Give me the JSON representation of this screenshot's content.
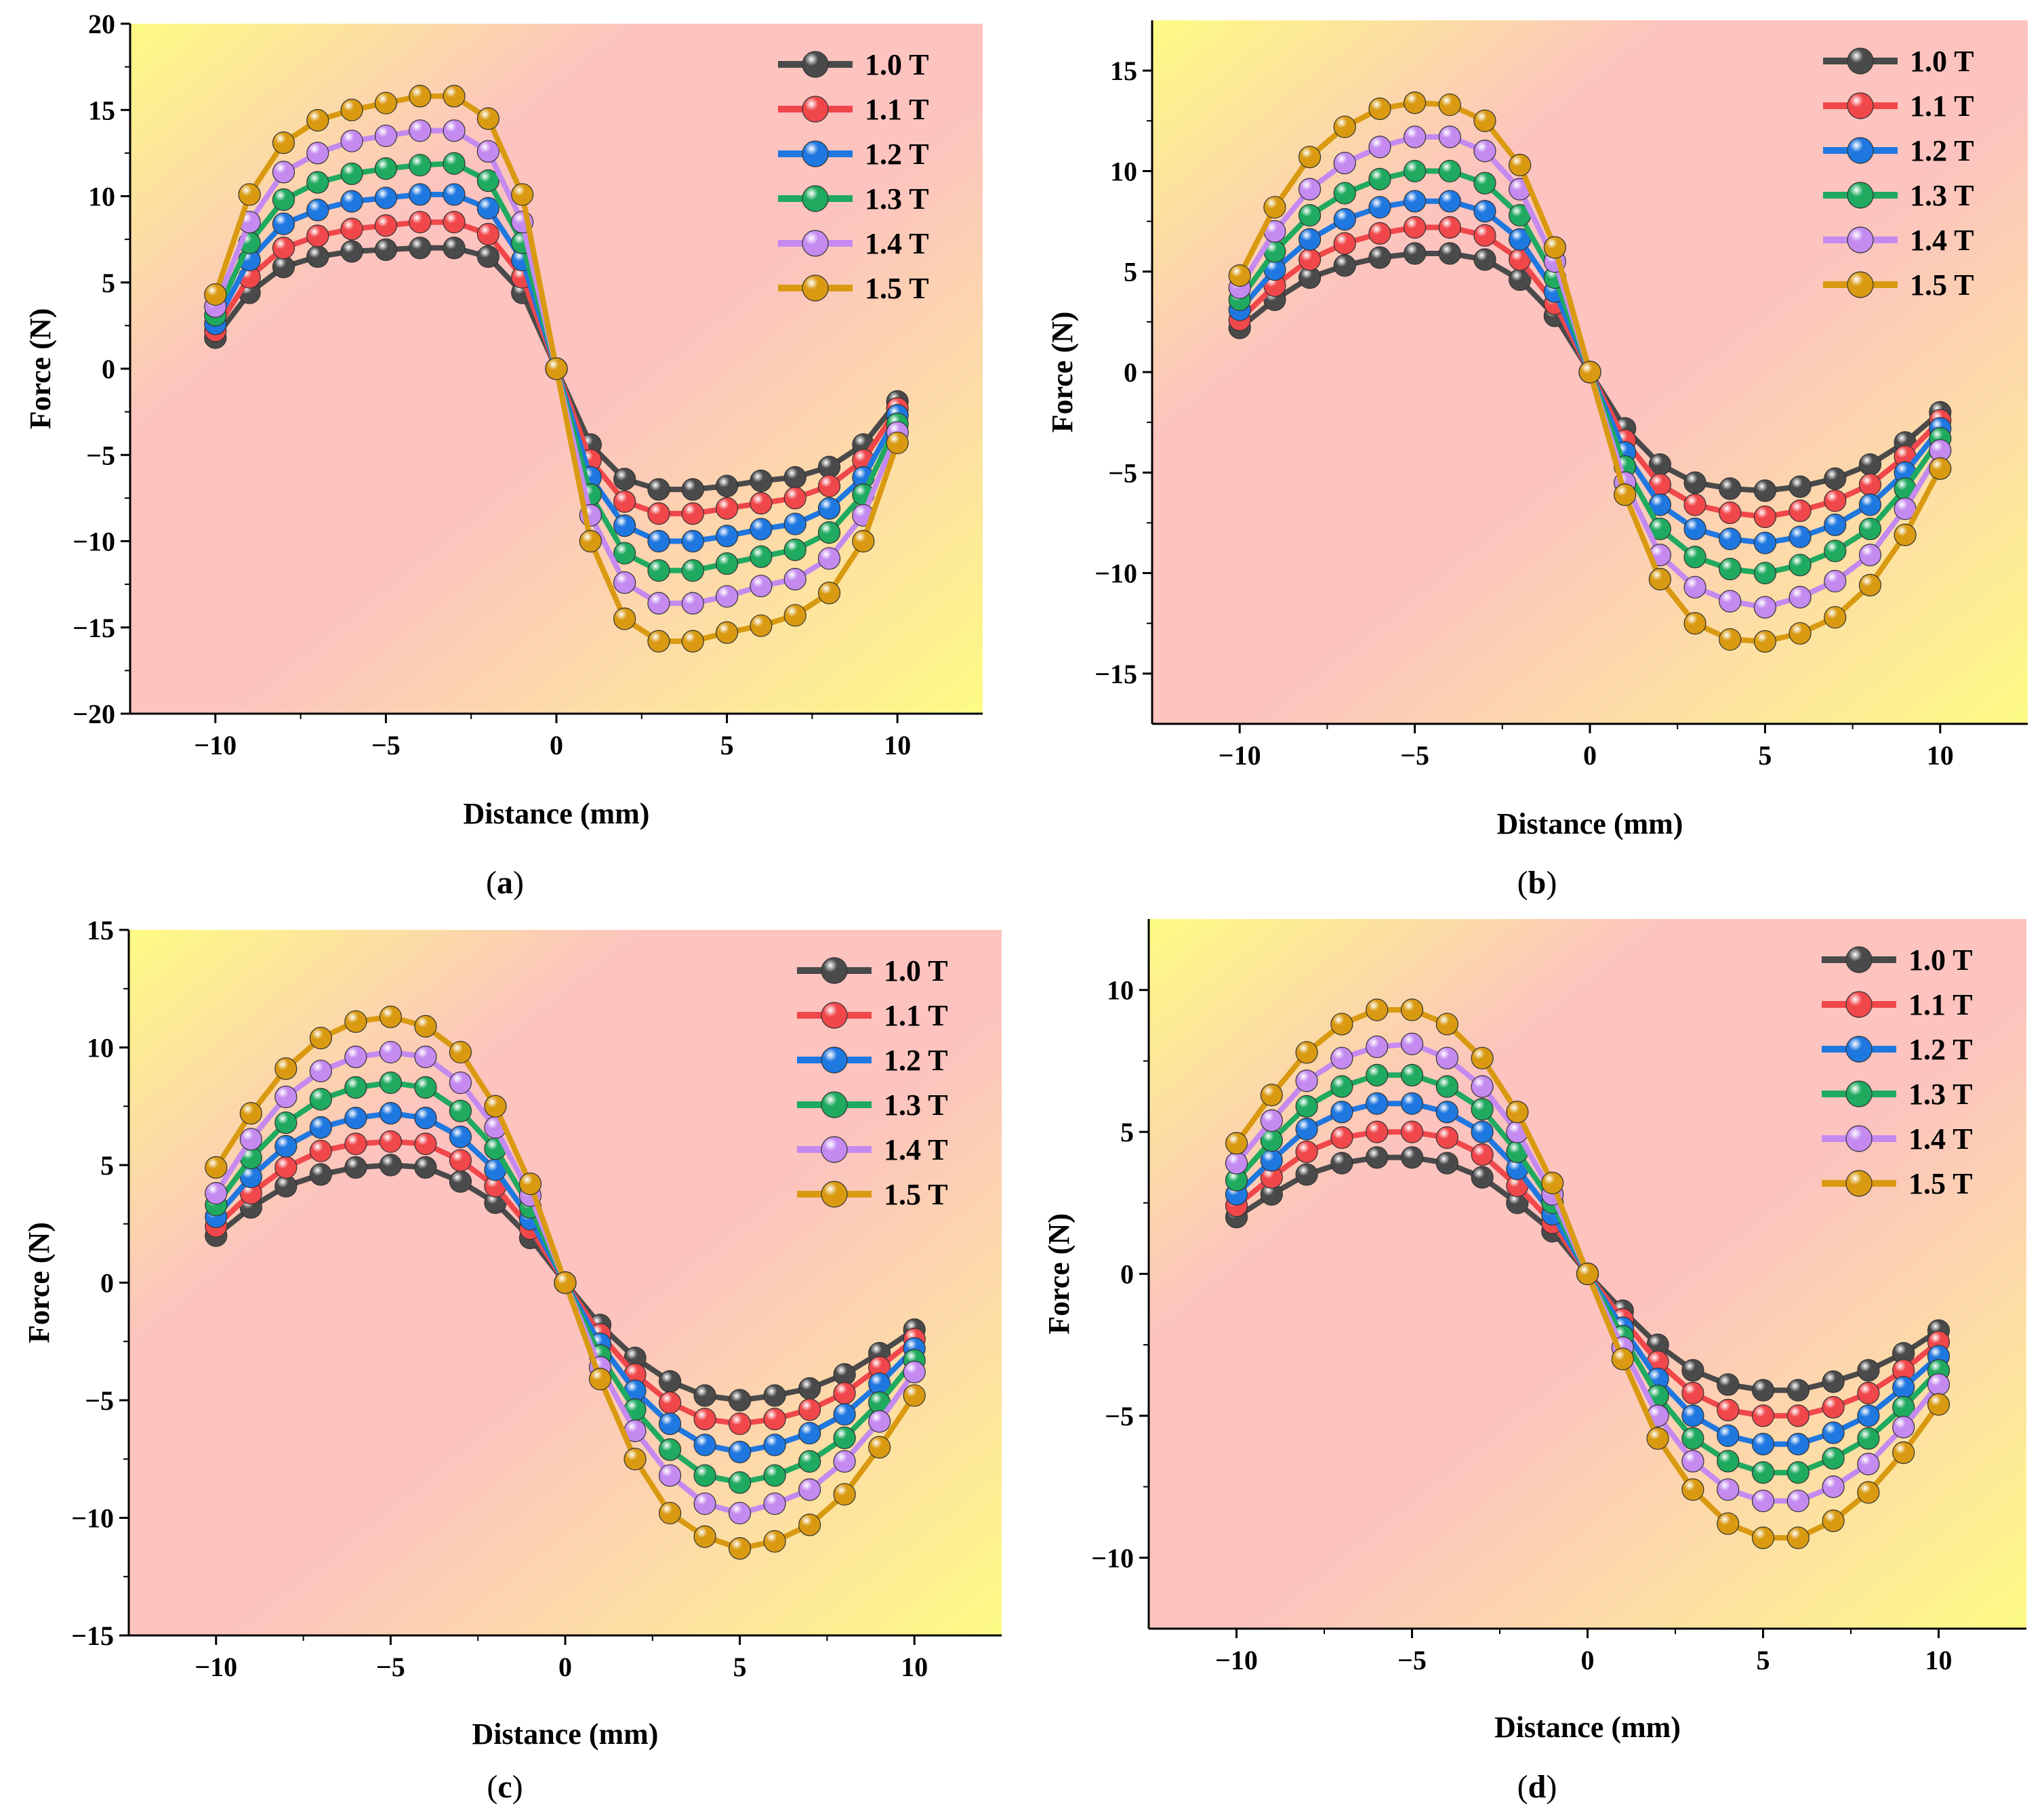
{
  "figure": {
    "colors": {
      "grad_pink": "#fcc3bf",
      "grad_yellow": "#fdfb84",
      "axis": "#000000",
      "marker_edge": "#333333"
    }
  },
  "chart_data": [
    {
      "panel_label": "a",
      "type": "line",
      "xlabel": "Distance (mm)",
      "ylabel": "Force (N)",
      "xlim": [
        -12.5,
        12.5
      ],
      "ylim": [
        -20,
        20
      ],
      "xticks": [
        -10,
        -5,
        0,
        5,
        10
      ],
      "xtick_labels": [
        "−10",
        "−5",
        "0",
        "5",
        "10"
      ],
      "yticks": [
        -20,
        -15,
        -10,
        -5,
        0,
        5,
        10,
        15,
        20
      ],
      "ytick_labels": [
        "−20",
        "−15",
        "−10",
        "−5",
        "0",
        "5",
        "10",
        "15",
        "20"
      ],
      "legend_position": "top-right",
      "x": [
        -10,
        -9,
        -8,
        -7,
        -6,
        -5,
        -4,
        -3,
        -2,
        -1,
        0,
        1,
        2,
        3,
        4,
        5,
        6,
        7,
        8,
        9,
        10
      ],
      "series": [
        {
          "name": "1.0 T",
          "color": "#4a4a4a",
          "values": [
            1.8,
            4.4,
            5.9,
            6.5,
            6.8,
            6.9,
            7.0,
            7.0,
            6.5,
            4.4,
            0,
            -4.4,
            -6.4,
            -7.0,
            -7.0,
            -6.8,
            -6.5,
            -6.3,
            -5.7,
            -4.4,
            -1.9
          ]
        },
        {
          "name": "1.1 T",
          "color": "#f0474b",
          "values": [
            2.2,
            5.3,
            7.0,
            7.7,
            8.1,
            8.3,
            8.5,
            8.5,
            7.8,
            5.3,
            0,
            -5.3,
            -7.7,
            -8.4,
            -8.4,
            -8.1,
            -7.8,
            -7.5,
            -6.8,
            -5.3,
            -2.3
          ]
        },
        {
          "name": "1.2 T",
          "color": "#1f77e0",
          "values": [
            2.6,
            6.3,
            8.4,
            9.2,
            9.7,
            9.9,
            10.1,
            10.1,
            9.3,
            6.3,
            0,
            -6.3,
            -9.1,
            -10.0,
            -10.0,
            -9.7,
            -9.3,
            -9.0,
            -8.1,
            -6.3,
            -2.7
          ]
        },
        {
          "name": "1.3 T",
          "color": "#1faa5f",
          "values": [
            3.1,
            7.3,
            9.8,
            10.8,
            11.3,
            11.6,
            11.8,
            11.9,
            10.9,
            7.3,
            0,
            -7.3,
            -10.7,
            -11.7,
            -11.7,
            -11.3,
            -10.9,
            -10.5,
            -9.5,
            -7.3,
            -3.2
          ]
        },
        {
          "name": "1.4 T",
          "color": "#c48af0",
          "values": [
            3.6,
            8.5,
            11.4,
            12.5,
            13.2,
            13.5,
            13.8,
            13.8,
            12.6,
            8.5,
            0,
            -8.5,
            -12.4,
            -13.6,
            -13.6,
            -13.2,
            -12.6,
            -12.2,
            -11.0,
            -8.5,
            -3.7
          ]
        },
        {
          "name": "1.5 T",
          "color": "#d99a11",
          "values": [
            4.3,
            10.1,
            13.1,
            14.4,
            15.0,
            15.4,
            15.8,
            15.8,
            14.5,
            10.1,
            0,
            -10.0,
            -14.5,
            -15.8,
            -15.8,
            -15.3,
            -14.9,
            -14.3,
            -13.0,
            -10.0,
            -4.3
          ]
        }
      ]
    },
    {
      "panel_label": "b",
      "type": "line",
      "xlabel": "Distance (mm)",
      "ylabel": "Force (N)",
      "xlim": [
        -12.5,
        12.5
      ],
      "ylim": [
        -17.5,
        17.5
      ],
      "xticks": [
        -10,
        -5,
        0,
        5,
        10
      ],
      "xtick_labels": [
        "−10",
        "−5",
        "0",
        "5",
        "10"
      ],
      "yticks": [
        -15,
        -10,
        -5,
        0,
        5,
        10,
        15
      ],
      "ytick_labels": [
        "−15",
        "−10",
        "−5",
        "0",
        "5",
        "10",
        "15"
      ],
      "legend_position": "top-right",
      "x": [
        -10,
        -9,
        -8,
        -7,
        -6,
        -5,
        -4,
        -3,
        -2,
        -1,
        0,
        1,
        2,
        3,
        4,
        5,
        6,
        7,
        8,
        9,
        10
      ],
      "series": [
        {
          "name": "1.0 T",
          "color": "#4a4a4a",
          "values": [
            2.2,
            3.6,
            4.7,
            5.3,
            5.7,
            5.9,
            5.9,
            5.6,
            4.6,
            2.8,
            0,
            -2.8,
            -4.6,
            -5.5,
            -5.8,
            -5.9,
            -5.7,
            -5.3,
            -4.6,
            -3.5,
            -2.0
          ]
        },
        {
          "name": "1.1 T",
          "color": "#f0474b",
          "values": [
            2.6,
            4.3,
            5.6,
            6.4,
            6.9,
            7.2,
            7.2,
            6.8,
            5.6,
            3.4,
            0,
            -3.4,
            -5.6,
            -6.6,
            -7.0,
            -7.2,
            -6.9,
            -6.4,
            -5.6,
            -4.2,
            -2.4
          ]
        },
        {
          "name": "1.2 T",
          "color": "#1f77e0",
          "values": [
            3.1,
            5.1,
            6.6,
            7.6,
            8.2,
            8.5,
            8.5,
            8.0,
            6.6,
            4.0,
            0,
            -4.0,
            -6.6,
            -7.8,
            -8.3,
            -8.5,
            -8.2,
            -7.6,
            -6.6,
            -5.0,
            -2.8
          ]
        },
        {
          "name": "1.3 T",
          "color": "#1faa5f",
          "values": [
            3.6,
            6.0,
            7.8,
            8.9,
            9.6,
            10.0,
            10.0,
            9.4,
            7.8,
            4.7,
            0,
            -4.7,
            -7.8,
            -9.2,
            -9.8,
            -10.0,
            -9.6,
            -8.9,
            -7.8,
            -5.8,
            -3.3
          ]
        },
        {
          "name": "1.4 T",
          "color": "#c48af0",
          "values": [
            4.2,
            7.0,
            9.1,
            10.4,
            11.2,
            11.7,
            11.7,
            11.0,
            9.1,
            5.5,
            0,
            -5.5,
            -9.1,
            -10.7,
            -11.4,
            -11.7,
            -11.2,
            -10.4,
            -9.1,
            -6.8,
            -3.9
          ]
        },
        {
          "name": "1.5 T",
          "color": "#d99a11",
          "values": [
            4.8,
            8.2,
            10.7,
            12.2,
            13.1,
            13.4,
            13.3,
            12.5,
            10.3,
            6.2,
            0,
            -6.1,
            -10.3,
            -12.5,
            -13.3,
            -13.4,
            -13.0,
            -12.2,
            -10.6,
            -8.1,
            -4.8
          ]
        }
      ]
    },
    {
      "panel_label": "c",
      "type": "line",
      "xlabel": "Distance (mm)",
      "ylabel": "Force (N)",
      "xlim": [
        -12.5,
        12.5
      ],
      "ylim": [
        -15,
        15
      ],
      "xticks": [
        -10,
        -5,
        0,
        5,
        10
      ],
      "xtick_labels": [
        "−10",
        "−5",
        "0",
        "5",
        "10"
      ],
      "yticks": [
        -15,
        -10,
        -5,
        0,
        5,
        10,
        15
      ],
      "ytick_labels": [
        "−15",
        "−10",
        "−5",
        "0",
        "5",
        "10",
        "15"
      ],
      "legend_position": "top-right",
      "x": [
        -10,
        -9,
        -8,
        -7,
        -6,
        -5,
        -4,
        -3,
        -2,
        -1,
        0,
        1,
        2,
        3,
        4,
        5,
        6,
        7,
        8,
        9,
        10
      ],
      "series": [
        {
          "name": "1.0 T",
          "color": "#4a4a4a",
          "values": [
            2.0,
            3.2,
            4.1,
            4.6,
            4.9,
            5.0,
            4.9,
            4.3,
            3.4,
            1.9,
            0,
            -1.8,
            -3.2,
            -4.2,
            -4.8,
            -5.0,
            -4.8,
            -4.5,
            -3.9,
            -3.0,
            -2.0
          ]
        },
        {
          "name": "1.1 T",
          "color": "#f0474b",
          "values": [
            2.4,
            3.8,
            4.9,
            5.6,
            5.9,
            6.0,
            5.9,
            5.2,
            4.1,
            2.3,
            0,
            -2.2,
            -3.9,
            -5.1,
            -5.8,
            -6.0,
            -5.8,
            -5.4,
            -4.7,
            -3.6,
            -2.4
          ]
        },
        {
          "name": "1.2 T",
          "color": "#1f77e0",
          "values": [
            2.8,
            4.5,
            5.8,
            6.6,
            7.0,
            7.2,
            7.0,
            6.2,
            4.8,
            2.7,
            0,
            -2.6,
            -4.6,
            -6.0,
            -6.9,
            -7.2,
            -6.9,
            -6.4,
            -5.6,
            -4.3,
            -2.8
          ]
        },
        {
          "name": "1.3 T",
          "color": "#1faa5f",
          "values": [
            3.3,
            5.3,
            6.8,
            7.8,
            8.3,
            8.5,
            8.3,
            7.3,
            5.7,
            3.2,
            0,
            -3.1,
            -5.4,
            -7.1,
            -8.2,
            -8.5,
            -8.2,
            -7.6,
            -6.6,
            -5.1,
            -3.3
          ]
        },
        {
          "name": "1.4 T",
          "color": "#c48af0",
          "values": [
            3.8,
            6.1,
            7.9,
            9.0,
            9.6,
            9.8,
            9.6,
            8.5,
            6.6,
            3.7,
            0,
            -3.6,
            -6.3,
            -8.2,
            -9.4,
            -9.8,
            -9.4,
            -8.8,
            -7.6,
            -5.9,
            -3.8
          ]
        },
        {
          "name": "1.5 T",
          "color": "#d99a11",
          "values": [
            4.9,
            7.2,
            9.1,
            10.4,
            11.1,
            11.3,
            10.9,
            9.8,
            7.5,
            4.2,
            0,
            -4.1,
            -7.5,
            -9.8,
            -10.8,
            -11.3,
            -11.0,
            -10.3,
            -9.0,
            -7.0,
            -4.8
          ]
        }
      ]
    },
    {
      "panel_label": "d",
      "type": "line",
      "xlabel": "Distance (mm)",
      "ylabel": "Force (N)",
      "xlim": [
        -12.5,
        12.5
      ],
      "ylim": [
        -12.5,
        12.5
      ],
      "xticks": [
        -10,
        -5,
        0,
        5,
        10
      ],
      "xtick_labels": [
        "−10",
        "−5",
        "0",
        "5",
        "10"
      ],
      "yticks": [
        -10,
        -5,
        0,
        5,
        10
      ],
      "ytick_labels": [
        "−10",
        "−5",
        "0",
        "5",
        "10"
      ],
      "legend_position": "top-right",
      "x": [
        -10,
        -9,
        -8,
        -7,
        -6,
        -5,
        -4,
        -3,
        -2,
        -1,
        0,
        1,
        2,
        3,
        4,
        5,
        6,
        7,
        8,
        9,
        10
      ],
      "series": [
        {
          "name": "1.0 T",
          "color": "#4a4a4a",
          "values": [
            2.0,
            2.8,
            3.5,
            3.9,
            4.1,
            4.1,
            3.9,
            3.4,
            2.5,
            1.5,
            0,
            -1.3,
            -2.5,
            -3.4,
            -3.9,
            -4.1,
            -4.1,
            -3.8,
            -3.4,
            -2.8,
            -2.0
          ]
        },
        {
          "name": "1.1 T",
          "color": "#f0474b",
          "values": [
            2.4,
            3.4,
            4.3,
            4.8,
            5.0,
            5.0,
            4.8,
            4.2,
            3.1,
            1.8,
            0,
            -1.6,
            -3.1,
            -4.2,
            -4.8,
            -5.0,
            -5.0,
            -4.7,
            -4.2,
            -3.4,
            -2.4
          ]
        },
        {
          "name": "1.2 T",
          "color": "#1f77e0",
          "values": [
            2.8,
            4.0,
            5.1,
            5.7,
            6.0,
            6.0,
            5.7,
            5.0,
            3.7,
            2.1,
            0,
            -1.9,
            -3.7,
            -5.0,
            -5.7,
            -6.0,
            -6.0,
            -5.6,
            -5.0,
            -4.0,
            -2.9
          ]
        },
        {
          "name": "1.3 T",
          "color": "#1faa5f",
          "values": [
            3.3,
            4.7,
            5.9,
            6.6,
            7.0,
            7.0,
            6.6,
            5.8,
            4.3,
            2.5,
            0,
            -2.2,
            -4.3,
            -5.8,
            -6.6,
            -7.0,
            -7.0,
            -6.5,
            -5.8,
            -4.7,
            -3.4
          ]
        },
        {
          "name": "1.4 T",
          "color": "#c48af0",
          "values": [
            3.9,
            5.4,
            6.8,
            7.6,
            8.0,
            8.1,
            7.6,
            6.6,
            5.0,
            2.8,
            0,
            -2.6,
            -5.0,
            -6.6,
            -7.6,
            -8.0,
            -8.0,
            -7.5,
            -6.7,
            -5.4,
            -3.9
          ]
        },
        {
          "name": "1.5 T",
          "color": "#d99a11",
          "values": [
            4.6,
            6.3,
            7.8,
            8.8,
            9.3,
            9.3,
            8.8,
            7.6,
            5.7,
            3.2,
            0,
            -3.0,
            -5.8,
            -7.6,
            -8.8,
            -9.3,
            -9.3,
            -8.7,
            -7.7,
            -6.3,
            -4.6
          ]
        }
      ]
    }
  ]
}
